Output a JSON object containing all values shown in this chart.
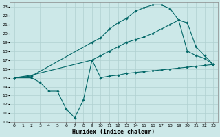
{
  "xlabel": "Humidex (Indice chaleur)",
  "bg_color": "#cce8e8",
  "grid_color": "#b0d0d0",
  "line_color": "#006666",
  "xlim": [
    -0.5,
    23.5
  ],
  "ylim": [
    10,
    23.5
  ],
  "xticks": [
    0,
    1,
    2,
    3,
    4,
    5,
    6,
    7,
    8,
    9,
    10,
    11,
    12,
    13,
    14,
    15,
    16,
    17,
    18,
    19,
    20,
    21,
    22,
    23
  ],
  "yticks": [
    10,
    11,
    12,
    13,
    14,
    15,
    16,
    17,
    18,
    19,
    20,
    21,
    22,
    23
  ],
  "line1_x": [
    0,
    2,
    3,
    4,
    5,
    6,
    7,
    8,
    9,
    10,
    11,
    12,
    13,
    14,
    15,
    16,
    17,
    18,
    19,
    20,
    21,
    22,
    23
  ],
  "line1_y": [
    15,
    15,
    14.5,
    13.5,
    13.5,
    11.5,
    10.5,
    12.5,
    17,
    15,
    15.2,
    15.3,
    15.5,
    15.6,
    15.7,
    15.8,
    15.9,
    16.0,
    16.1,
    16.2,
    16.3,
    16.4,
    16.5
  ],
  "line2_x": [
    0,
    2,
    9,
    10,
    11,
    12,
    13,
    14,
    15,
    16,
    17,
    18,
    19,
    20,
    21,
    22,
    23
  ],
  "line2_y": [
    15,
    15.2,
    19.0,
    19.5,
    20.5,
    21.2,
    21.7,
    22.5,
    22.9,
    23.2,
    23.2,
    22.8,
    21.5,
    18.0,
    17.5,
    17.2,
    16.5
  ],
  "line3_x": [
    0,
    2,
    9,
    10,
    11,
    12,
    13,
    14,
    15,
    16,
    17,
    18,
    19,
    20,
    21,
    22,
    23
  ],
  "line3_y": [
    15,
    15.3,
    17.0,
    17.5,
    18.0,
    18.5,
    19.0,
    19.3,
    19.6,
    20.0,
    20.5,
    21.0,
    21.5,
    21.2,
    18.5,
    17.5,
    16.5
  ]
}
